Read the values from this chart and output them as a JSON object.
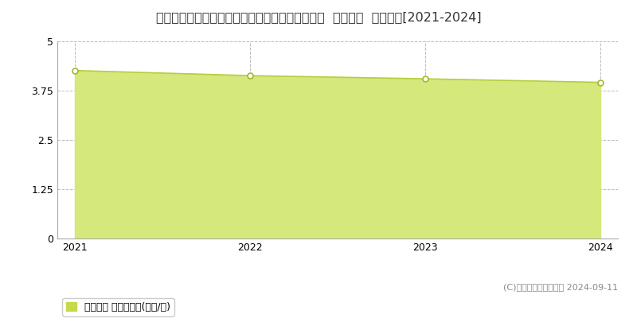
{
  "title": "青森県南津軽郡大鰐町大字大鰐字大鰐９２番４外  地価公示  地価推移[2021-2024]",
  "years": [
    2021,
    2022,
    2023,
    2024
  ],
  "values": [
    4.26,
    4.13,
    4.05,
    3.96
  ],
  "line_color": "#b8cc3c",
  "fill_color": "#d4e87c",
  "fill_alpha": 1.0,
  "marker_color": "white",
  "marker_edge_color": "#a0b830",
  "marker_size": 5,
  "ylim": [
    0,
    5
  ],
  "yticks": [
    0,
    1.25,
    2.5,
    3.75,
    5
  ],
  "grid_color": "#bbbbbb",
  "grid_style": "--",
  "background_color": "#ffffff",
  "legend_label": "地価公示 平均坪単価(万円/坪)",
  "legend_color": "#c8d84a",
  "copyright_text": "(C)土地価格ドットコム 2024-09-11",
  "title_fontsize": 11.5,
  "axis_fontsize": 9,
  "legend_fontsize": 9,
  "copyright_fontsize": 8
}
